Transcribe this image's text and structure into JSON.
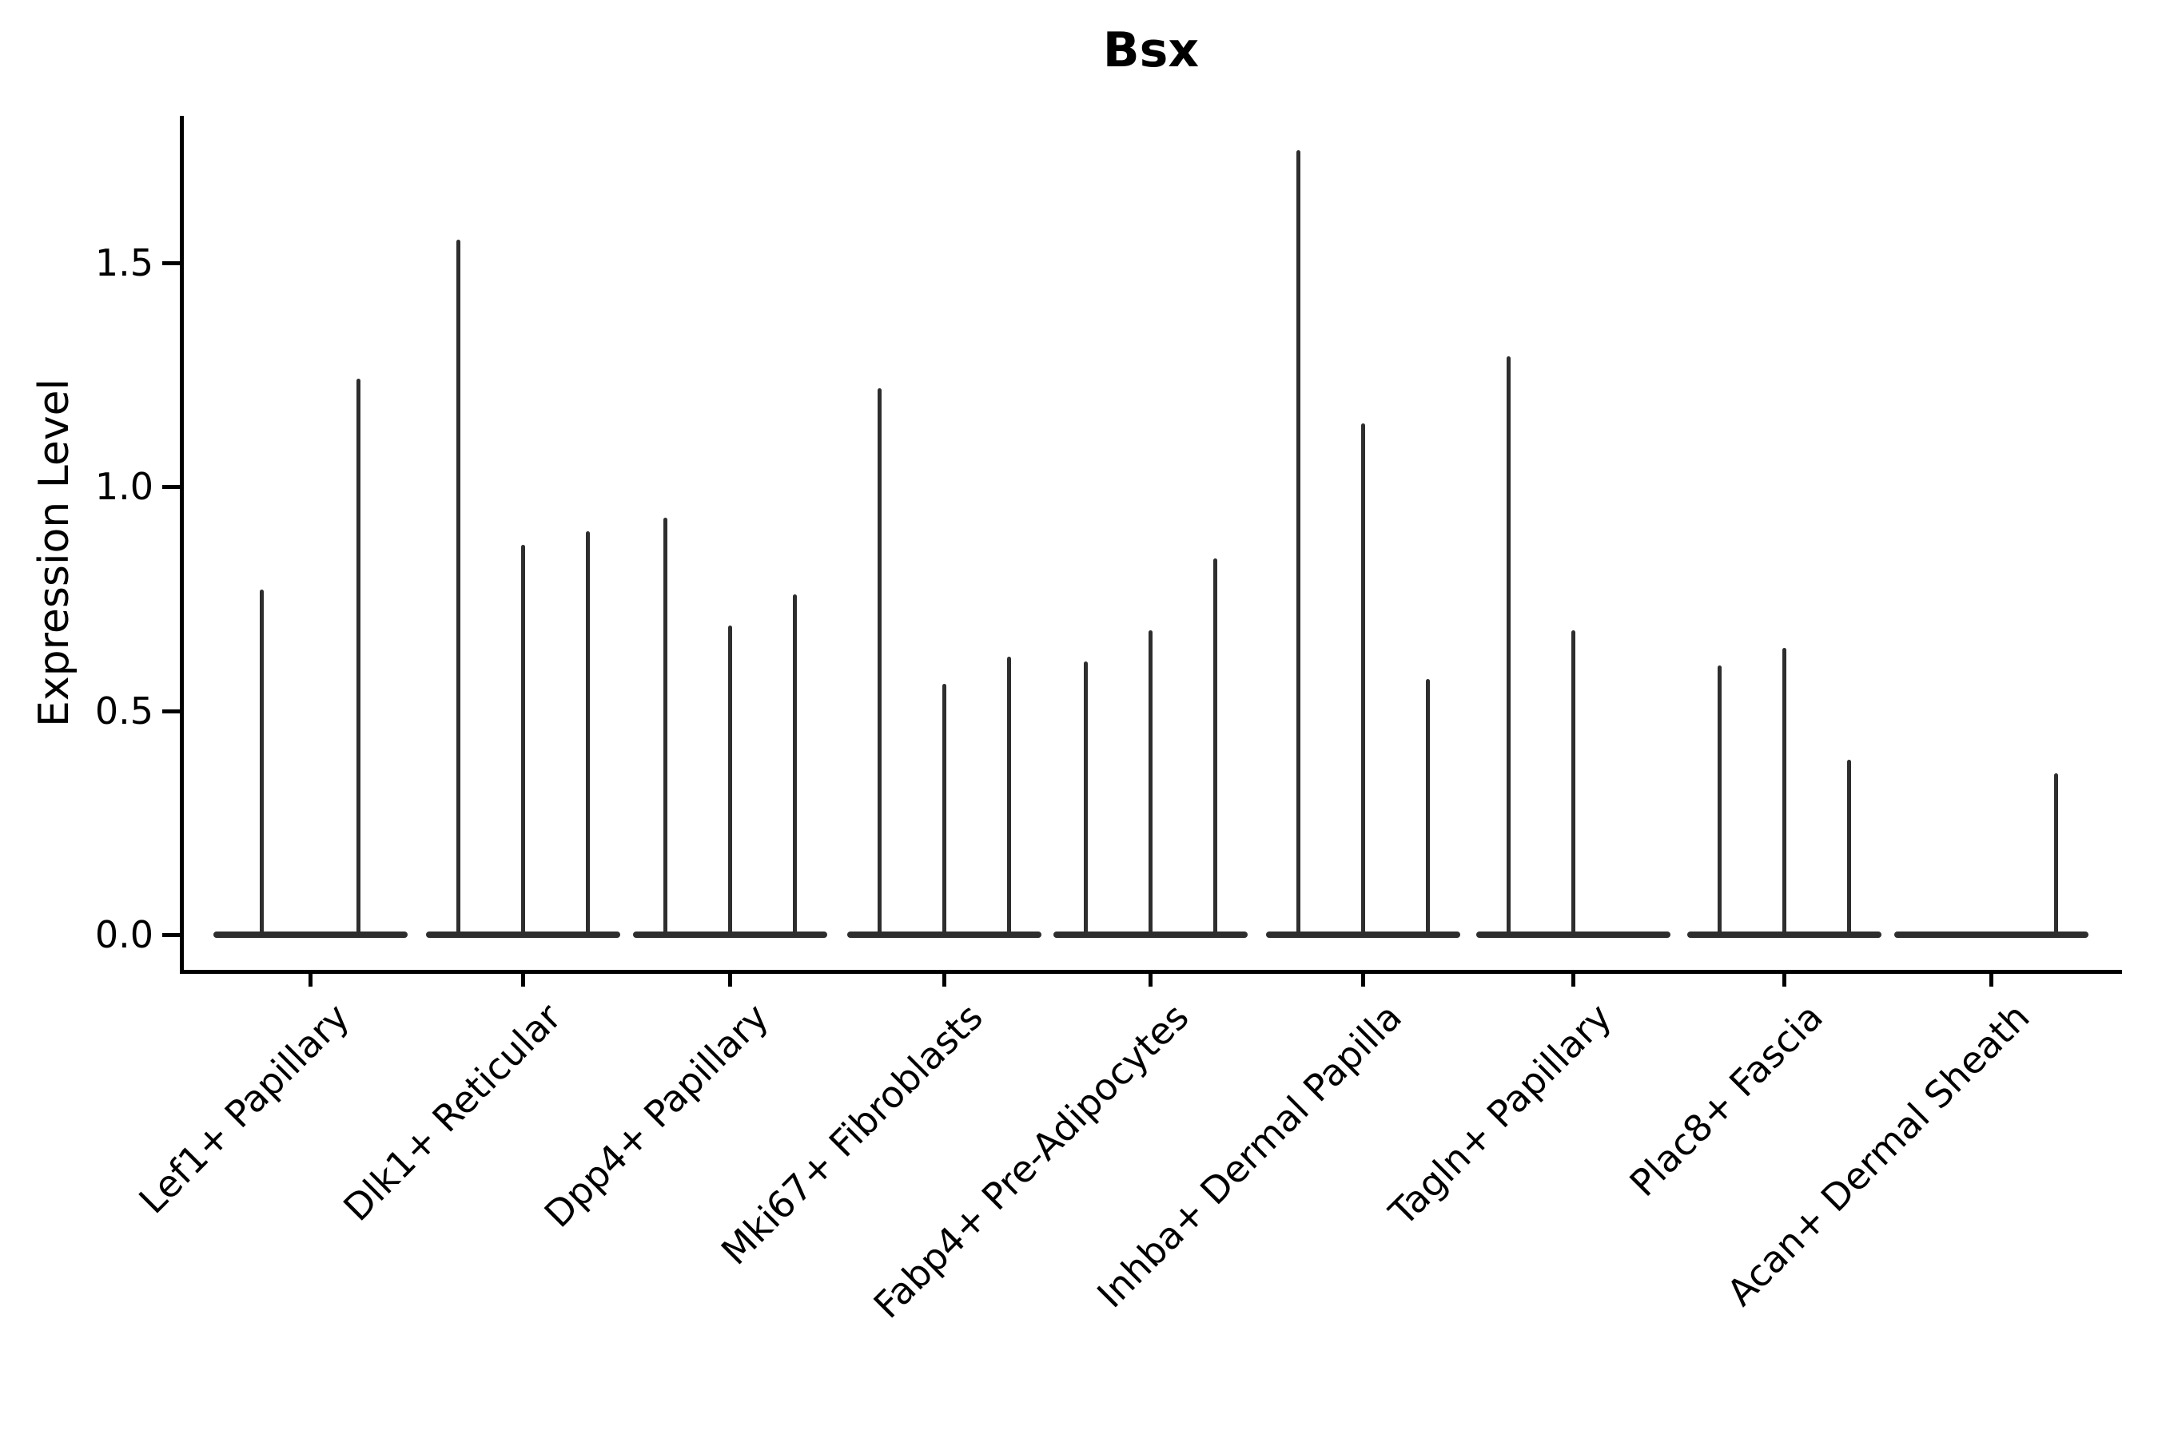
{
  "chart_data": {
    "type": "violin",
    "title": "Bsx",
    "ylabel": "Expression Level",
    "xlabel": "",
    "ylim": [
      0,
      1.83
    ],
    "grid": false,
    "legend_position": "none",
    "yticks": [
      {
        "value": 0.0,
        "label": "0.0"
      },
      {
        "value": 0.5,
        "label": "0.5"
      },
      {
        "value": 1.0,
        "label": "1.0"
      },
      {
        "value": 1.5,
        "label": "1.5"
      }
    ],
    "violin_style": "sparse expression: wide flat base at 0 with thin spike up to the maximum expression value; a 0 maximum means a flat violin with no spike",
    "groups": [
      {
        "label": "Lef1+ Papillary",
        "violin_maxima": [
          0.77,
          1.24
        ]
      },
      {
        "label": "Dlk1+ Reticular",
        "violin_maxima": [
          1.55,
          0.87,
          0.9
        ]
      },
      {
        "label": "Dpp4+ Papillary",
        "violin_maxima": [
          0.93,
          0.69,
          0.76
        ]
      },
      {
        "label": "Mki67+ Fibroblasts",
        "violin_maxima": [
          1.22,
          0.56,
          0.62
        ]
      },
      {
        "label": "Fabp4+ Pre-Adipocytes",
        "violin_maxima": [
          0.61,
          0.68,
          0.84
        ]
      },
      {
        "label": "Inhba+ Dermal Papilla",
        "violin_maxima": [
          1.75,
          1.14,
          0.57
        ]
      },
      {
        "label": "Tagln+ Papillary",
        "violin_maxima": [
          1.29,
          0.68,
          0
        ]
      },
      {
        "label": "Plac8+ Fascia",
        "violin_maxima": [
          0.6,
          0.64,
          0.39
        ]
      },
      {
        "label": "Acan+ Dermal Sheath",
        "violin_maxima": [
          0,
          0,
          0.36
        ]
      }
    ]
  },
  "colors": {
    "violin": "#2e2e2e",
    "axis": "#000000",
    "text": "#000000",
    "background": "#ffffff"
  }
}
